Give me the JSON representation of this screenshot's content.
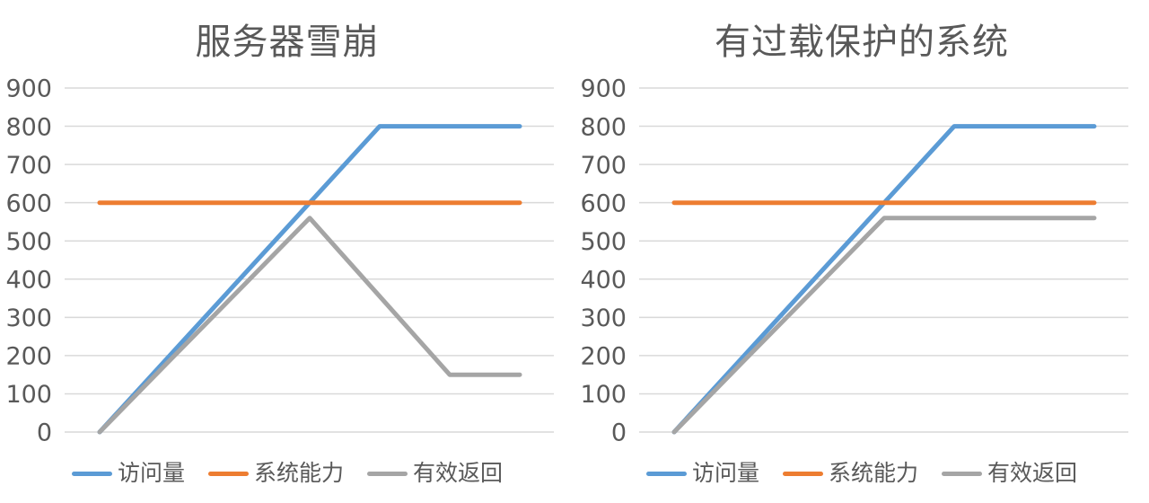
{
  "figure": {
    "background": "#ffffff",
    "text_color": "#595959",
    "gridline_color": "#d9d9d9"
  },
  "chart_data": [
    {
      "type": "line",
      "title": "服务器雪崩",
      "x": [
        1,
        2,
        3,
        4,
        5,
        6,
        7
      ],
      "series": [
        {
          "name": "访问量",
          "color": "#5B9BD5",
          "values": [
            0,
            200,
            400,
            600,
            800,
            800,
            800
          ]
        },
        {
          "name": "系统能力",
          "color": "#ED7D31",
          "values": [
            600,
            600,
            600,
            600,
            600,
            600,
            600
          ]
        },
        {
          "name": "有效返回",
          "color": "#A5A5A5",
          "values": [
            0,
            187,
            373,
            560,
            355,
            150,
            150
          ]
        }
      ],
      "ylim": [
        0,
        900
      ],
      "yticks": [
        900,
        800,
        700,
        600,
        500,
        400,
        300,
        200,
        100,
        0
      ],
      "xlabel": "",
      "ylabel": "",
      "x_tick_labels_visible": false,
      "grid": true,
      "legend_position": "bottom"
    },
    {
      "type": "line",
      "title": "有过载保护的系统",
      "x": [
        1,
        2,
        3,
        4,
        5,
        6,
        7
      ],
      "series": [
        {
          "name": "访问量",
          "color": "#5B9BD5",
          "values": [
            0,
            200,
            400,
            600,
            800,
            800,
            800
          ]
        },
        {
          "name": "系统能力",
          "color": "#ED7D31",
          "values": [
            600,
            600,
            600,
            600,
            600,
            600,
            600
          ]
        },
        {
          "name": "有效返回",
          "color": "#A5A5A5",
          "values": [
            0,
            187,
            373,
            560,
            560,
            560,
            560
          ]
        }
      ],
      "ylim": [
        0,
        900
      ],
      "yticks": [
        900,
        800,
        700,
        600,
        500,
        400,
        300,
        200,
        100,
        0
      ],
      "xlabel": "",
      "ylabel": "",
      "x_tick_labels_visible": false,
      "grid": true,
      "legend_position": "bottom"
    }
  ]
}
